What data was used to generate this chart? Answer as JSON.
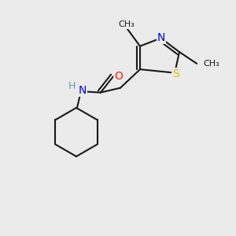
{
  "background_color": "#ebebeb",
  "bond_color": "#1a1a1a",
  "bond_width": 1.5,
  "atom_colors": {
    "N": "#0000ee",
    "O": "#ff2000",
    "S": "#c8c800",
    "C": "#1a1a1a",
    "H": "#5f9ea0"
  },
  "font_size": 10,
  "figsize": [
    3.0,
    3.0
  ],
  "dpi": 100,
  "xlim": [
    0,
    10
  ],
  "ylim": [
    0,
    10
  ]
}
